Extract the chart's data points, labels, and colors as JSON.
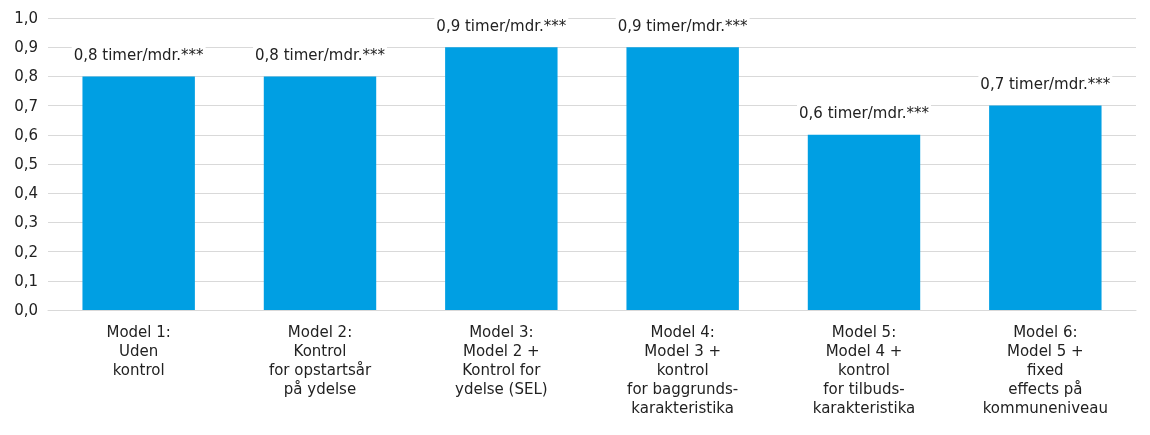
{
  "chart_data": {
    "type": "bar",
    "categories": [
      "Model 1:\nUden\nkontrol",
      "Model 2:\nKontrol\nfor opstartsår\npå ydelse",
      "Model 3:\nModel 2 +\nKontrol for\nydelse (SEL)",
      "Model 4:\nModel 3 +\nkontrol\nfor baggrunds-\nkarakteristika",
      "Model 5:\nModel 4 +\nkontrol\nfor tilbuds-\nkarakteristika",
      "Model 6:\nModel 5 +\nfixed\neffects på\nkommuneniveau"
    ],
    "values": [
      0.8,
      0.8,
      0.9,
      0.9,
      0.6,
      0.7
    ],
    "value_labels": [
      "0,8 timer/mdr.***",
      "0,8 timer/mdr.***",
      "0,9 timer/mdr.***",
      "0,9 timer/mdr.***",
      "0,6 timer/mdr.***",
      "0,7 timer/mdr.***"
    ],
    "color": "#009fe3",
    "ylim": [
      0,
      1
    ],
    "yticks": [
      {
        "value": 0,
        "label": "0,0"
      },
      {
        "value": 0.1,
        "label": "0,1"
      },
      {
        "value": 0.2,
        "label": "0,2"
      },
      {
        "value": 0.3,
        "label": "0,3"
      },
      {
        "value": 0.4,
        "label": "0,4"
      },
      {
        "value": 0.5,
        "label": "0,5"
      },
      {
        "value": 0.6,
        "label": "0,6"
      },
      {
        "value": 0.7,
        "label": "0,7"
      },
      {
        "value": 0.8,
        "label": "0,8"
      },
      {
        "value": 0.9,
        "label": "0,9"
      },
      {
        "value": 1,
        "label": "1,0"
      }
    ],
    "grid": "y"
  }
}
